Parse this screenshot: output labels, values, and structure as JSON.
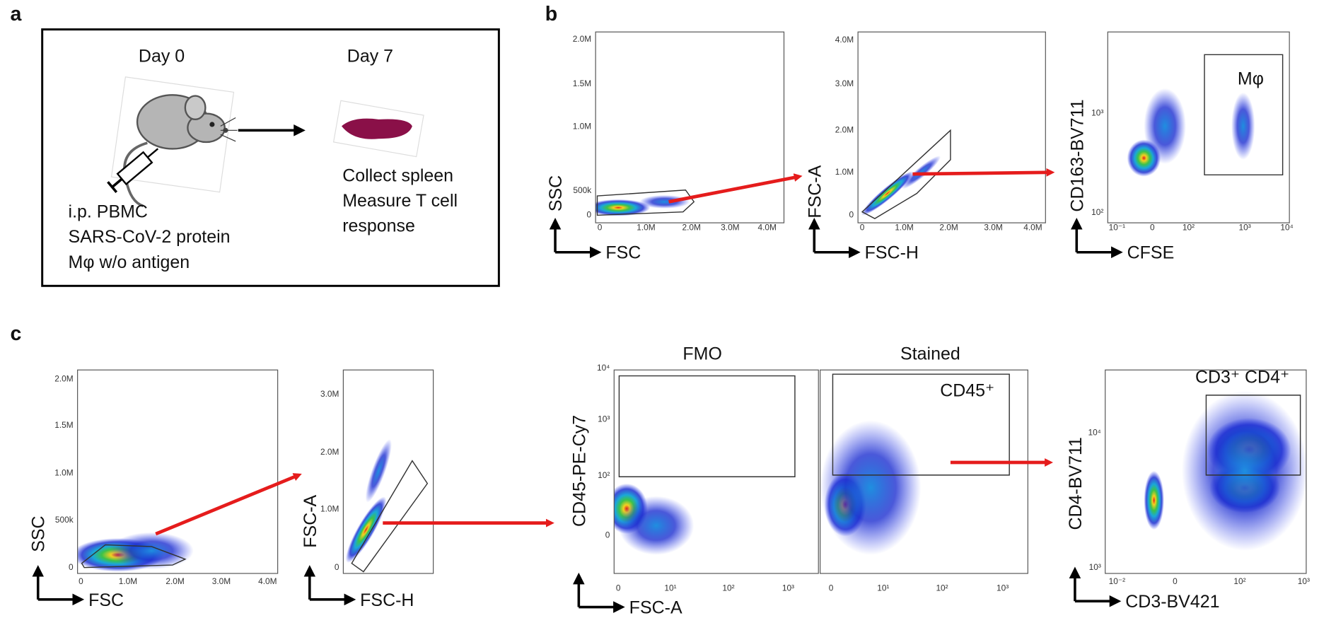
{
  "panel_labels": [
    "a",
    "b",
    "c"
  ],
  "schematic": {
    "day0": "Day 0",
    "day7": "Day 7",
    "left_text": [
      "i.p. PBMC",
      "SARS-CoV-2 protein",
      "Mφ w/o antigen"
    ],
    "right_text": [
      "Collect spleen",
      "Measure T cell",
      "response"
    ]
  },
  "plots": [
    {
      "y_label": "SSC",
      "x_label": "FSC",
      "x_ticks": [
        "0",
        "1.0M",
        "2.0M",
        "3.0M",
        "4.0M"
      ],
      "y_ticks": [
        "0",
        "500k",
        "1.0M",
        "1.5M",
        "2.0M"
      ]
    },
    {
      "y_label": "FSC-A",
      "x_label": "FSC-H",
      "x_ticks": [
        "0",
        "1.0M",
        "2.0M",
        "3.0M",
        "4.0M"
      ],
      "y_ticks": [
        "0",
        "1.0M",
        "2.0M",
        "3.0M",
        "4.0M"
      ]
    },
    {
      "y_label": "CD163-BV711",
      "x_label": "CFSE",
      "x_ticks": [
        "10⁻¹",
        "0",
        "10²",
        "10³",
        "10⁴"
      ],
      "y_ticks": [
        "10³",
        "10²"
      ],
      "gate_label": "Mφ"
    },
    {
      "y_label": "SSC",
      "x_label": "FSC",
      "x_ticks": [
        "0",
        "1.0M",
        "2.0M",
        "3.0M",
        "4.0M"
      ],
      "y_ticks": [
        "0",
        "500k",
        "1.0M",
        "1.5M",
        "2.0M"
      ]
    },
    {
      "y_label": "FSC-A",
      "x_label": "FSC-H",
      "x_ticks": [],
      "y_ticks": [
        "0",
        "1.0M",
        "2.0M",
        "3.0M"
      ]
    },
    {
      "title": "FMO",
      "y_label": "CD45-PE-Cy7",
      "x_label": "FSC-A",
      "x_ticks": [
        "0",
        "10¹",
        "10²",
        "10³"
      ],
      "y_ticks": [
        "10⁴",
        "10³",
        "10²",
        "0"
      ]
    },
    {
      "title": "Stained",
      "x_ticks": [
        "0",
        "10¹",
        "10²",
        "10³"
      ],
      "y_ticks": [],
      "gate_label": "CD45⁺"
    },
    {
      "y_label": "CD4-BV711",
      "x_label": "CD3-BV421",
      "x_ticks": [
        "10⁻²",
        "0",
        "10²",
        "10³"
      ],
      "y_ticks": [
        "10⁴",
        "10³"
      ],
      "gate_label": "CD3⁺ CD4⁺"
    }
  ]
}
